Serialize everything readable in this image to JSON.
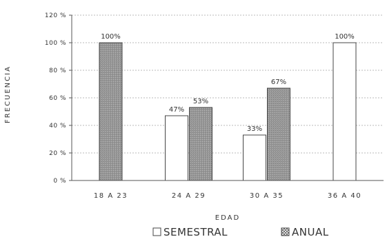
{
  "chart_data": {
    "type": "bar",
    "title": "",
    "xlabel": "EDAD",
    "ylabel": "FRECUENCIA",
    "categories": [
      "18 A 23",
      "24 A 29",
      "30 A 35",
      "36 A 40"
    ],
    "ylim": [
      0,
      120
    ],
    "yticks": [
      0,
      20,
      40,
      60,
      80,
      100,
      120
    ],
    "ytick_labels": [
      "0 %",
      "20 %",
      "40 %",
      "60 %",
      "80 %",
      "100 %",
      "120 %"
    ],
    "grid": true,
    "legend_position": "bottom",
    "series": [
      {
        "name": "SEMESTRAL",
        "values": [
          0,
          47,
          33,
          100
        ],
        "labels": [
          "",
          "47%",
          "33%",
          "100%"
        ],
        "color": "#ffffff"
      },
      {
        "name": "ANUAL",
        "values": [
          100,
          53,
          67,
          0
        ],
        "labels": [
          "100%",
          "53%",
          "67%",
          ""
        ],
        "color": "#9a9a9a"
      }
    ]
  }
}
